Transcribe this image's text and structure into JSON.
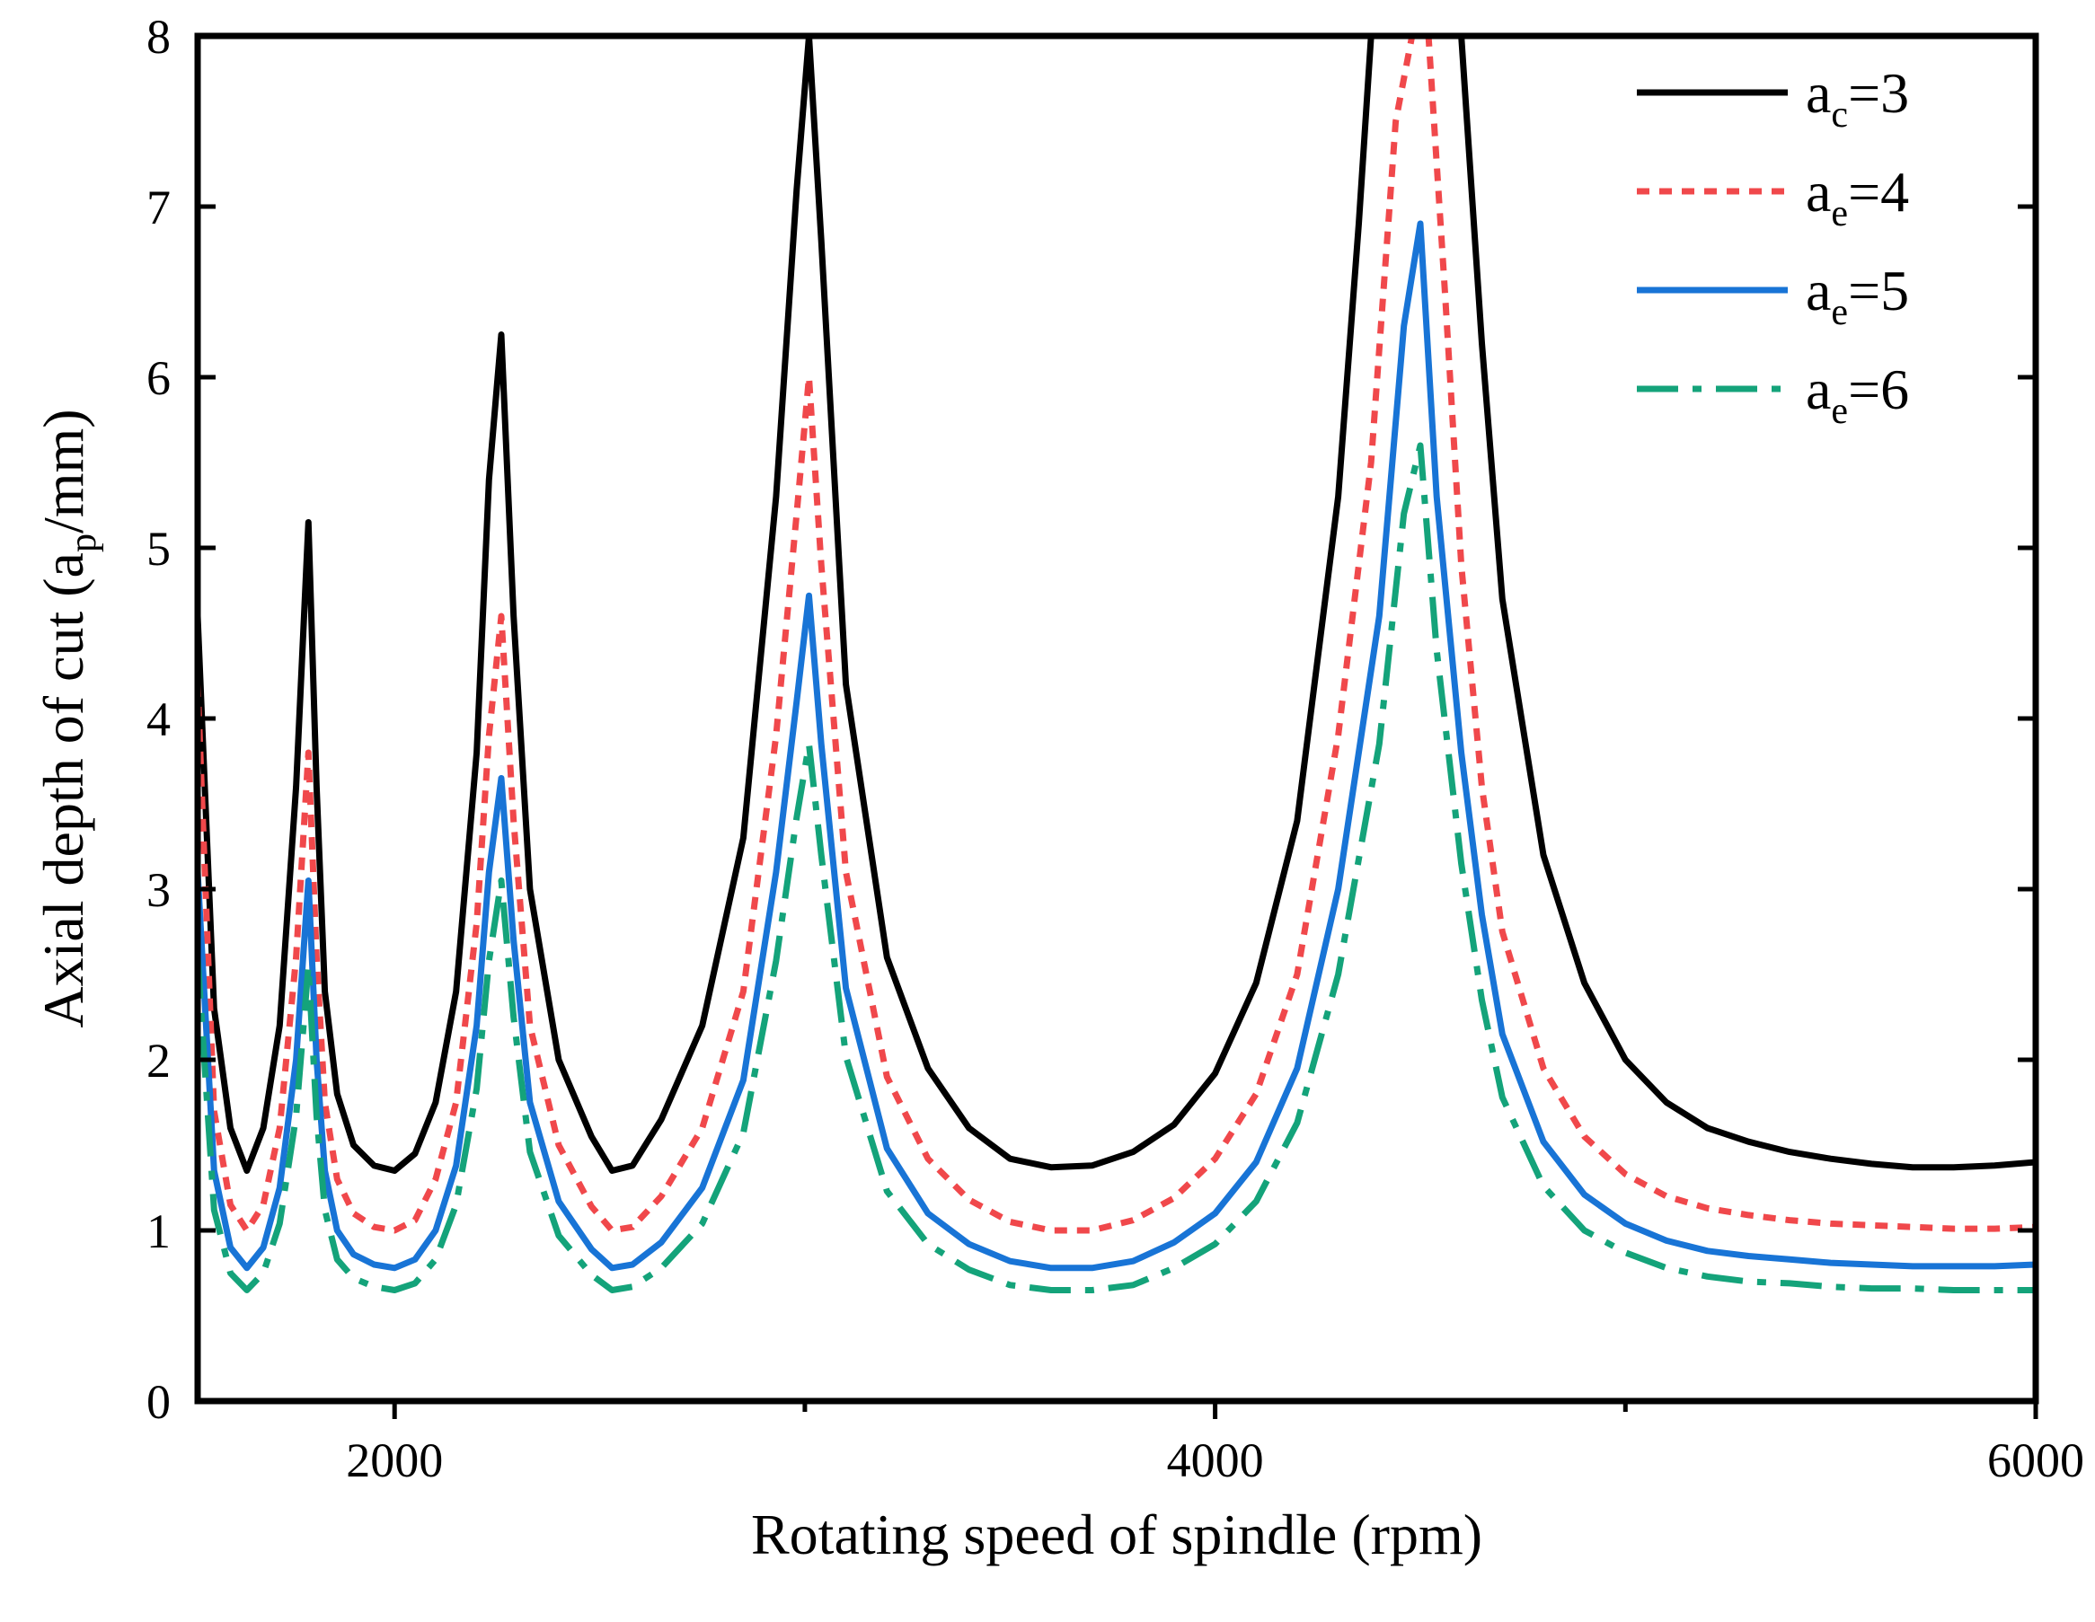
{
  "chart_data": {
    "type": "line",
    "xlabel": "Rotating speed of spindle (rpm)",
    "ylabel": {
      "prefix": "Axial depth of cut (a",
      "sub": "p",
      "suffix": "/mm)"
    },
    "xlim": [
      1520,
      6000
    ],
    "ylim": [
      0,
      8
    ],
    "xticks": [
      2000,
      4000,
      6000
    ],
    "xminor": [
      3000,
      5000
    ],
    "yticks": [
      0,
      1,
      2,
      3,
      4,
      5,
      6,
      7,
      8
    ],
    "grid": false,
    "legend_position": "top-right",
    "series": [
      {
        "name": "a_c=3",
        "label_main": "a",
        "label_sub": "c",
        "label_rest": "=3",
        "color": "#000000",
        "dash": "solid",
        "x": [
          1520,
          1560,
          1600,
          1640,
          1680,
          1720,
          1760,
          1790,
          1810,
          1830,
          1860,
          1900,
          1950,
          2000,
          2050,
          2100,
          2150,
          2200,
          2230,
          2260,
          2290,
          2330,
          2400,
          2480,
          2530,
          2580,
          2650,
          2750,
          2850,
          2930,
          2980,
          3010,
          3040,
          3100,
          3200,
          3300,
          3400,
          3500,
          3600,
          3700,
          3800,
          3900,
          4000,
          4100,
          4200,
          4300,
          4350,
          4380,
          4420,
          4480,
          4520,
          4560,
          4600,
          4650,
          4700,
          4800,
          4900,
          5000,
          5100,
          5200,
          5300,
          5400,
          5500,
          5600,
          5700,
          5800,
          5900,
          6000
        ],
        "y": [
          4.6,
          2.3,
          1.6,
          1.35,
          1.6,
          2.2,
          3.6,
          5.15,
          3.6,
          2.4,
          1.8,
          1.5,
          1.38,
          1.35,
          1.45,
          1.75,
          2.4,
          3.8,
          5.4,
          6.25,
          4.6,
          3.0,
          2.0,
          1.55,
          1.35,
          1.38,
          1.65,
          2.2,
          3.3,
          5.3,
          7.1,
          8.0,
          6.8,
          4.2,
          2.6,
          1.95,
          1.6,
          1.42,
          1.37,
          1.38,
          1.46,
          1.62,
          1.92,
          2.45,
          3.4,
          5.3,
          6.9,
          8.0,
          8.0,
          8.0,
          8.0,
          8.0,
          8.0,
          6.2,
          4.7,
          3.2,
          2.45,
          2.0,
          1.75,
          1.6,
          1.52,
          1.46,
          1.42,
          1.39,
          1.37,
          1.37,
          1.38,
          1.4
        ]
      },
      {
        "name": "a_e=4",
        "label_main": "a",
        "label_sub": "e",
        "label_rest": "=4",
        "color": "#f0484b",
        "dash": "dotted",
        "x": [
          1520,
          1560,
          1600,
          1640,
          1680,
          1720,
          1760,
          1790,
          1810,
          1830,
          1860,
          1900,
          1950,
          2000,
          2050,
          2100,
          2150,
          2200,
          2230,
          2260,
          2290,
          2330,
          2400,
          2480,
          2530,
          2580,
          2650,
          2750,
          2850,
          2930,
          2980,
          3010,
          3040,
          3100,
          3200,
          3300,
          3400,
          3500,
          3600,
          3700,
          3800,
          3900,
          4000,
          4100,
          4200,
          4300,
          4380,
          4440,
          4480,
          4520,
          4560,
          4600,
          4650,
          4700,
          4800,
          4900,
          5000,
          5100,
          5200,
          5300,
          5400,
          5500,
          5600,
          5700,
          5800,
          5900,
          6000
        ],
        "y": [
          4.2,
          1.7,
          1.15,
          1.0,
          1.15,
          1.6,
          2.6,
          3.8,
          2.6,
          1.75,
          1.3,
          1.1,
          1.02,
          1.0,
          1.06,
          1.3,
          1.75,
          2.8,
          3.9,
          4.6,
          3.4,
          2.2,
          1.5,
          1.14,
          1.0,
          1.02,
          1.2,
          1.6,
          2.4,
          3.9,
          5.2,
          6.0,
          4.9,
          3.1,
          1.9,
          1.42,
          1.18,
          1.05,
          1.0,
          1.0,
          1.06,
          1.19,
          1.42,
          1.8,
          2.5,
          3.9,
          5.5,
          7.5,
          8.0,
          8.0,
          6.5,
          4.9,
          3.6,
          2.75,
          1.95,
          1.55,
          1.33,
          1.2,
          1.13,
          1.09,
          1.06,
          1.04,
          1.03,
          1.02,
          1.01,
          1.01,
          1.02
        ]
      },
      {
        "name": "a_e=5",
        "label_main": "a",
        "label_sub": "e",
        "label_rest": "=5",
        "color": "#1874d6",
        "dash": "solid",
        "x": [
          1520,
          1560,
          1600,
          1640,
          1680,
          1720,
          1760,
          1790,
          1810,
          1830,
          1860,
          1900,
          1950,
          2000,
          2050,
          2100,
          2150,
          2200,
          2230,
          2260,
          2290,
          2330,
          2400,
          2480,
          2530,
          2580,
          2650,
          2750,
          2850,
          2930,
          2980,
          3010,
          3040,
          3100,
          3200,
          3300,
          3400,
          3500,
          3600,
          3700,
          3800,
          3900,
          4000,
          4100,
          4200,
          4300,
          4400,
          4460,
          4500,
          4540,
          4600,
          4650,
          4700,
          4800,
          4900,
          5000,
          5100,
          5200,
          5300,
          5400,
          5500,
          5600,
          5700,
          5800,
          5900,
          6000
        ],
        "y": [
          3.1,
          1.35,
          0.9,
          0.78,
          0.9,
          1.25,
          2.0,
          3.05,
          2.0,
          1.35,
          1.0,
          0.86,
          0.8,
          0.78,
          0.83,
          1.0,
          1.38,
          2.2,
          3.1,
          3.65,
          2.7,
          1.75,
          1.17,
          0.89,
          0.78,
          0.8,
          0.93,
          1.25,
          1.88,
          3.1,
          4.1,
          4.72,
          3.85,
          2.42,
          1.48,
          1.1,
          0.92,
          0.82,
          0.78,
          0.78,
          0.82,
          0.93,
          1.1,
          1.4,
          1.95,
          3.0,
          4.6,
          6.3,
          6.9,
          5.3,
          3.8,
          2.85,
          2.15,
          1.52,
          1.21,
          1.04,
          0.94,
          0.88,
          0.85,
          0.83,
          0.81,
          0.8,
          0.79,
          0.79,
          0.79,
          0.8
        ]
      },
      {
        "name": "a_e=6",
        "label_main": "a",
        "label_sub": "e",
        "label_rest": "=6",
        "color": "#14a37a",
        "dash": "dashdot",
        "x": [
          1520,
          1560,
          1600,
          1640,
          1680,
          1720,
          1760,
          1790,
          1810,
          1830,
          1860,
          1900,
          1950,
          2000,
          2050,
          2100,
          2150,
          2200,
          2230,
          2260,
          2290,
          2330,
          2400,
          2480,
          2530,
          2580,
          2650,
          2750,
          2850,
          2930,
          2980,
          3010,
          3040,
          3100,
          3200,
          3300,
          3400,
          3500,
          3600,
          3700,
          3800,
          3900,
          4000,
          4100,
          4200,
          4300,
          4400,
          4460,
          4500,
          4540,
          4600,
          4650,
          4700,
          4800,
          4900,
          5000,
          5100,
          5200,
          5300,
          5400,
          5500,
          5600,
          5700,
          5800,
          5900,
          6000
        ],
        "y": [
          2.6,
          1.12,
          0.75,
          0.65,
          0.75,
          1.04,
          1.67,
          2.55,
          1.67,
          1.12,
          0.83,
          0.72,
          0.67,
          0.65,
          0.69,
          0.83,
          1.15,
          1.83,
          2.58,
          3.05,
          2.25,
          1.46,
          0.97,
          0.74,
          0.65,
          0.67,
          0.78,
          1.04,
          1.57,
          2.58,
          3.42,
          3.85,
          3.2,
          2.02,
          1.23,
          0.92,
          0.77,
          0.68,
          0.65,
          0.65,
          0.68,
          0.78,
          0.92,
          1.17,
          1.63,
          2.5,
          3.85,
          5.2,
          5.6,
          4.4,
          3.15,
          2.35,
          1.78,
          1.26,
          1.0,
          0.87,
          0.78,
          0.73,
          0.7,
          0.69,
          0.67,
          0.66,
          0.66,
          0.65,
          0.65,
          0.65
        ]
      }
    ]
  }
}
